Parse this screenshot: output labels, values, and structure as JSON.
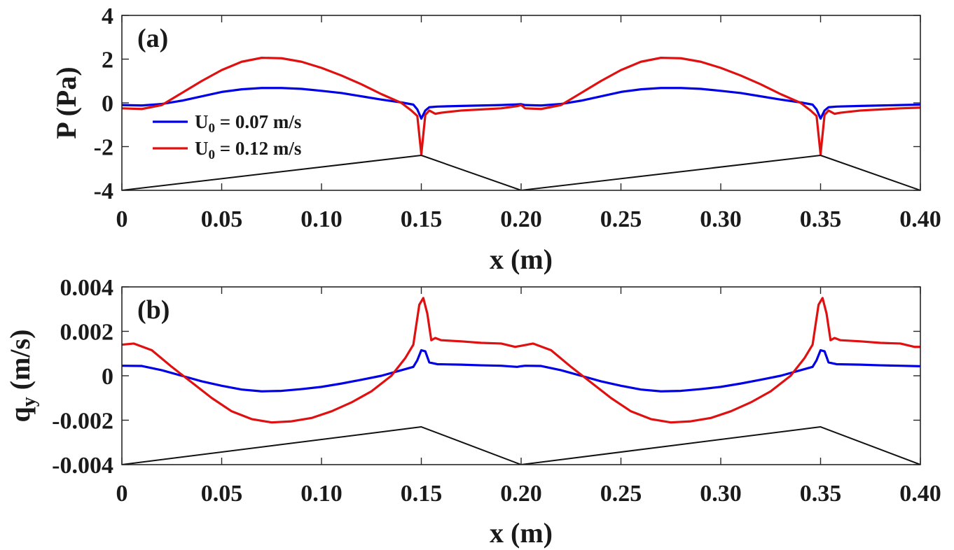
{
  "chart_data": [
    {
      "panel_label": "(a)",
      "type": "line",
      "xlabel": "x (m)",
      "ylabel": "P (Pa)",
      "xlim": [
        0,
        0.4
      ],
      "ylim": [
        -4,
        4
      ],
      "xtick_labels": [
        "0",
        "0.05",
        "0.10",
        "0.15",
        "0.20",
        "0.25",
        "0.30",
        "0.35",
        "0.40"
      ],
      "xtick_values": [
        0,
        0.05,
        0.1,
        0.15,
        0.2,
        0.25,
        0.3,
        0.35,
        0.4
      ],
      "ytick_labels": [
        "4",
        "2",
        "0",
        "-2",
        "-4"
      ],
      "ytick_values": [
        4,
        2,
        0,
        -2,
        -4
      ],
      "legend": [
        {
          "name": "U",
          "sub": "0",
          "rest": " = 0.07 m/s",
          "color": "#0000e6"
        },
        {
          "name": "U",
          "sub": "0",
          "rest": " = 0.12 m/s",
          "color": "#e01010"
        }
      ],
      "series": [
        {
          "name": "U0 = 0.07 m/s",
          "color": "#0000e6",
          "x": [
            0,
            0.01,
            0.02,
            0.03,
            0.04,
            0.05,
            0.06,
            0.07,
            0.08,
            0.09,
            0.1,
            0.11,
            0.12,
            0.13,
            0.14,
            0.146,
            0.148,
            0.15,
            0.152,
            0.154,
            0.158,
            0.17,
            0.18,
            0.19,
            0.198,
            0.2,
            0.202,
            0.21,
            0.22,
            0.23,
            0.24,
            0.25,
            0.26,
            0.27,
            0.28,
            0.29,
            0.3,
            0.31,
            0.32,
            0.33,
            0.34,
            0.346,
            0.348,
            0.35,
            0.352,
            0.354,
            0.358,
            0.37,
            0.38,
            0.39,
            0.4
          ],
          "y": [
            -0.1,
            -0.12,
            -0.05,
            0.1,
            0.3,
            0.5,
            0.62,
            0.68,
            0.68,
            0.64,
            0.55,
            0.45,
            0.3,
            0.15,
            0.02,
            -0.08,
            -0.3,
            -0.72,
            -0.35,
            -0.2,
            -0.17,
            -0.14,
            -0.12,
            -0.1,
            -0.07,
            -0.06,
            -0.1,
            -0.12,
            -0.05,
            0.1,
            0.3,
            0.5,
            0.62,
            0.68,
            0.68,
            0.64,
            0.55,
            0.45,
            0.3,
            0.15,
            0.02,
            -0.08,
            -0.3,
            -0.72,
            -0.35,
            -0.2,
            -0.17,
            -0.14,
            -0.12,
            -0.1,
            -0.08
          ]
        },
        {
          "name": "U0 = 0.12 m/s",
          "color": "#e01010",
          "x": [
            0,
            0.01,
            0.02,
            0.03,
            0.04,
            0.05,
            0.06,
            0.07,
            0.08,
            0.09,
            0.1,
            0.11,
            0.12,
            0.13,
            0.14,
            0.145,
            0.148,
            0.15,
            0.152,
            0.154,
            0.157,
            0.16,
            0.17,
            0.18,
            0.19,
            0.198,
            0.2,
            0.202,
            0.21,
            0.22,
            0.23,
            0.24,
            0.25,
            0.26,
            0.27,
            0.28,
            0.29,
            0.3,
            0.31,
            0.32,
            0.33,
            0.34,
            0.345,
            0.348,
            0.35,
            0.352,
            0.354,
            0.357,
            0.36,
            0.37,
            0.38,
            0.39,
            0.4
          ],
          "y": [
            -0.25,
            -0.28,
            -0.1,
            0.45,
            1.0,
            1.5,
            1.88,
            2.06,
            2.04,
            1.88,
            1.6,
            1.25,
            0.85,
            0.4,
            0.0,
            -0.35,
            -0.6,
            -2.35,
            -0.55,
            -0.35,
            -0.5,
            -0.45,
            -0.35,
            -0.3,
            -0.25,
            -0.15,
            -0.1,
            -0.25,
            -0.28,
            -0.1,
            0.45,
            1.0,
            1.5,
            1.88,
            2.06,
            2.04,
            1.88,
            1.6,
            1.25,
            0.85,
            0.4,
            0.0,
            -0.35,
            -0.6,
            -2.35,
            -0.55,
            -0.35,
            -0.5,
            -0.45,
            -0.35,
            -0.3,
            -0.25,
            -0.22
          ]
        },
        {
          "name": "bedform",
          "color": "#111111",
          "x": [
            0,
            0.15,
            0.2,
            0.35,
            0.4
          ],
          "y": [
            -4,
            -2.4,
            -4,
            -2.4,
            -4
          ]
        }
      ]
    },
    {
      "panel_label": "(b)",
      "type": "line",
      "xlabel": "x (m)",
      "ylabel": "q",
      "ylabel_sub": "y",
      "ylabel_rest": " (m/s)",
      "xlim": [
        0,
        0.4
      ],
      "ylim": [
        -0.004,
        0.004
      ],
      "xtick_labels": [
        "0",
        "0.05",
        "0.10",
        "0.15",
        "0.20",
        "0.25",
        "0.30",
        "0.35",
        "0.40"
      ],
      "xtick_values": [
        0,
        0.05,
        0.1,
        0.15,
        0.2,
        0.25,
        0.3,
        0.35,
        0.4
      ],
      "ytick_labels": [
        "0.004",
        "0.002",
        "0",
        "-0.002",
        "-0.004"
      ],
      "ytick_values": [
        0.004,
        0.002,
        0,
        -0.002,
        -0.004
      ],
      "series": [
        {
          "name": "U0 = 0.07 m/s",
          "color": "#0000e6",
          "x": [
            0,
            0.01,
            0.02,
            0.03,
            0.04,
            0.05,
            0.06,
            0.07,
            0.08,
            0.09,
            0.1,
            0.11,
            0.12,
            0.13,
            0.14,
            0.146,
            0.148,
            0.15,
            0.152,
            0.154,
            0.158,
            0.17,
            0.18,
            0.19,
            0.198,
            0.2,
            0.202,
            0.21,
            0.22,
            0.23,
            0.24,
            0.25,
            0.26,
            0.27,
            0.28,
            0.29,
            0.3,
            0.31,
            0.32,
            0.33,
            0.34,
            0.346,
            0.348,
            0.35,
            0.352,
            0.354,
            0.358,
            0.37,
            0.38,
            0.39,
            0.4
          ],
          "y": [
            0.00045,
            0.00044,
            0.00025,
            0.0,
            -0.00025,
            -0.00045,
            -0.00062,
            -0.0007,
            -0.00068,
            -0.0006,
            -0.0005,
            -0.00035,
            -0.00018,
            0.0,
            0.00025,
            0.0004,
            0.0007,
            0.00115,
            0.0011,
            0.0006,
            0.00052,
            0.0005,
            0.00047,
            0.00045,
            0.0004,
            0.00043,
            0.00045,
            0.00044,
            0.00025,
            0.0,
            -0.00025,
            -0.00045,
            -0.00062,
            -0.0007,
            -0.00068,
            -0.0006,
            -0.0005,
            -0.00035,
            -0.00018,
            0.0,
            0.00025,
            0.0004,
            0.0007,
            0.00115,
            0.0011,
            0.0006,
            0.00052,
            0.0005,
            0.00047,
            0.00045,
            0.00043
          ]
        },
        {
          "name": "U0 = 0.12 m/s",
          "color": "#e01010",
          "x": [
            0,
            0.006,
            0.015,
            0.025,
            0.035,
            0.045,
            0.055,
            0.065,
            0.075,
            0.085,
            0.095,
            0.105,
            0.115,
            0.125,
            0.135,
            0.142,
            0.146,
            0.149,
            0.151,
            0.153,
            0.155,
            0.157,
            0.16,
            0.17,
            0.18,
            0.19,
            0.197,
            0.2,
            0.203,
            0.206,
            0.215,
            0.225,
            0.235,
            0.245,
            0.255,
            0.265,
            0.275,
            0.285,
            0.295,
            0.305,
            0.315,
            0.325,
            0.335,
            0.342,
            0.346,
            0.349,
            0.351,
            0.353,
            0.355,
            0.357,
            0.36,
            0.37,
            0.38,
            0.39,
            0.397,
            0.4
          ],
          "y": [
            0.0014,
            0.00145,
            0.00115,
            0.0004,
            -0.0003,
            -0.001,
            -0.0016,
            -0.00195,
            -0.0021,
            -0.00205,
            -0.0019,
            -0.0016,
            -0.0012,
            -0.0007,
            0.0,
            0.0008,
            0.0014,
            0.0032,
            0.0035,
            0.0028,
            0.0016,
            0.0017,
            0.0016,
            0.00155,
            0.00148,
            0.00145,
            0.0013,
            0.00135,
            0.0014,
            0.00145,
            0.00115,
            0.0004,
            -0.0003,
            -0.001,
            -0.0016,
            -0.00195,
            -0.0021,
            -0.00205,
            -0.0019,
            -0.0016,
            -0.0012,
            -0.0007,
            0.0,
            0.0008,
            0.0014,
            0.0032,
            0.0035,
            0.0028,
            0.0016,
            0.0017,
            0.0016,
            0.00155,
            0.00148,
            0.00145,
            0.0013,
            0.0013
          ]
        },
        {
          "name": "bedform",
          "color": "#111111",
          "x": [
            0,
            0.15,
            0.2,
            0.35,
            0.4
          ],
          "y": [
            -0.004,
            -0.0023,
            -0.004,
            -0.0023,
            -0.004
          ]
        }
      ]
    }
  ]
}
